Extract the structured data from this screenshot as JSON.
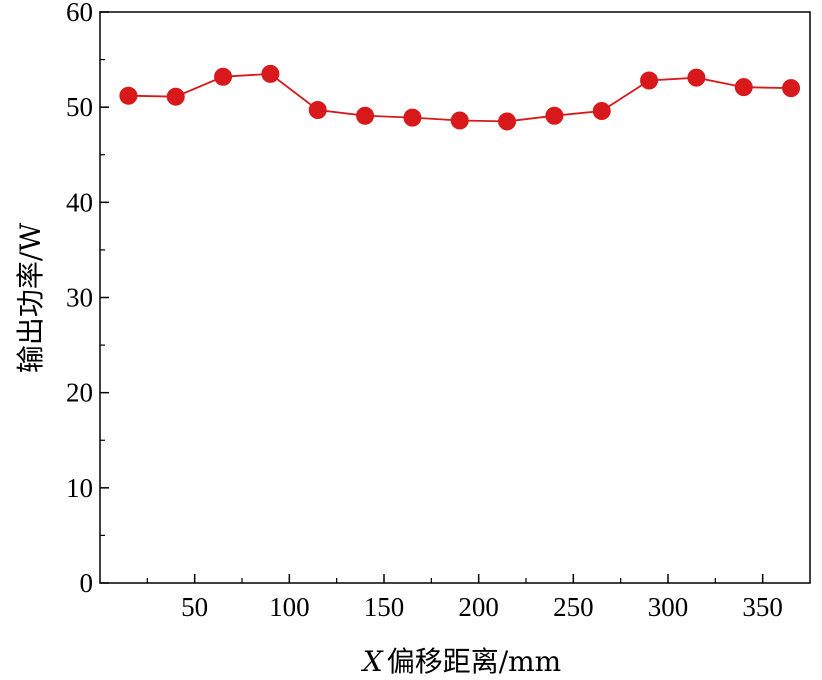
{
  "chart_data": {
    "type": "line",
    "xlabel_var": "X",
    "xlabel_rest": "偏移距离/mm",
    "ylabel": "输出功率/W",
    "xlim": [
      0,
      375
    ],
    "ylim": [
      0,
      60
    ],
    "x_ticks_major": [
      50,
      100,
      150,
      200,
      250,
      300,
      350
    ],
    "x_ticks_minor": [
      25,
      75,
      125,
      175,
      225,
      275,
      325
    ],
    "y_ticks_major": [
      0,
      10,
      20,
      30,
      40,
      50,
      60
    ],
    "y_ticks_minor": [
      5,
      15,
      25,
      35,
      45,
      55
    ],
    "grid": false,
    "legend": "none",
    "series": [
      {
        "color": "#d7191c",
        "marker": "circle",
        "x": [
          15,
          40,
          65,
          90,
          115,
          140,
          165,
          190,
          215,
          240,
          265,
          290,
          315,
          340,
          365
        ],
        "y": [
          51.2,
          51.1,
          53.2,
          53.5,
          49.7,
          49.1,
          48.9,
          48.6,
          48.5,
          49.1,
          49.6,
          52.8,
          53.1,
          52.1,
          52.0
        ]
      }
    ]
  }
}
